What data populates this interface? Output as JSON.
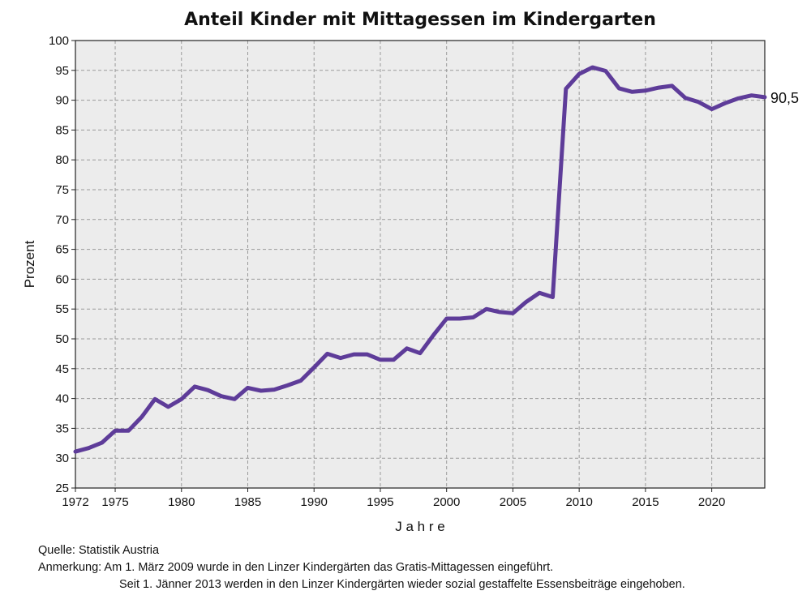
{
  "chart_data": {
    "type": "line",
    "title": "Anteil Kinder mit Mittagessen im Kindergarten",
    "xlabel": "J a h r e",
    "ylabel": "Prozent",
    "xlim": [
      1972,
      2024
    ],
    "ylim": [
      25,
      100
    ],
    "x_ticks": [
      1972,
      1975,
      1980,
      1985,
      1990,
      1995,
      2000,
      2005,
      2010,
      2015,
      2020
    ],
    "y_ticks": [
      25,
      30,
      35,
      40,
      45,
      50,
      55,
      60,
      65,
      70,
      75,
      80,
      85,
      90,
      95,
      100
    ],
    "grid": true,
    "line_color": "#5e3c99",
    "plot_background": "#ececec",
    "end_label": "90,5",
    "series": [
      {
        "x": [
          1972,
          1973,
          1974,
          1975,
          1976,
          1977,
          1978,
          1979,
          1980,
          1981,
          1982,
          1983,
          1984,
          1985,
          1986,
          1987,
          1988,
          1989,
          1990,
          1991,
          1992,
          1993,
          1994,
          1995,
          1996,
          1997,
          1998,
          1999,
          2000,
          2001,
          2002,
          2003,
          2004,
          2005,
          2006,
          2007,
          2008,
          2009,
          2010,
          2011,
          2012,
          2013,
          2014,
          2015,
          2016,
          2017,
          2018,
          2019,
          2020,
          2021,
          2022,
          2023,
          2024
        ],
        "values": [
          31.1,
          31.7,
          32.6,
          34.6,
          34.6,
          36.9,
          39.9,
          38.6,
          39.9,
          42.0,
          41.4,
          40.4,
          39.9,
          41.8,
          41.3,
          41.5,
          42.2,
          43.0,
          45.2,
          47.5,
          46.8,
          47.4,
          47.4,
          46.5,
          46.5,
          48.4,
          47.6,
          50.6,
          53.4,
          53.4,
          53.6,
          55.0,
          54.5,
          54.3,
          56.2,
          57.7,
          57.0,
          91.9,
          94.4,
          95.5,
          94.9,
          92.0,
          91.4,
          91.6,
          92.1,
          92.4,
          90.4,
          89.7,
          88.5,
          89.5,
          90.3,
          90.8,
          90.5
        ]
      }
    ]
  },
  "footer": {
    "source": "Quelle: Statistik Austria",
    "note_label": "Anmerkung:",
    "note_line1": "Am 1. März 2009 wurde in den Linzer Kindergärten das Gratis-Mittagessen eingeführt.",
    "note_line2": "Seit 1. Jänner 2013 werden in den Linzer Kindergärten wieder sozial gestaffelte Essensbeiträge eingehoben."
  }
}
